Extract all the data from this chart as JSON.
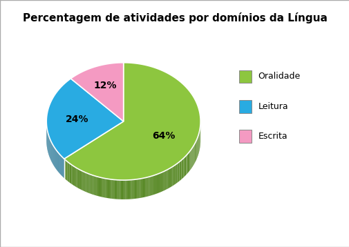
{
  "title": "Percentagem de atividades por domínios da Língua",
  "slices": [
    64,
    24,
    12
  ],
  "labels": [
    "Oralidade",
    "Leitura",
    "Escrita"
  ],
  "colors": [
    "#8DC63F",
    "#29ABE2",
    "#F49AC2"
  ],
  "dark_colors": [
    "#5A8A28",
    "#1A6E90",
    "#C06090"
  ],
  "pct_labels": [
    "64%",
    "24%",
    "12%"
  ],
  "legend_labels": [
    "Oralidade",
    "Leitura",
    "Escrita"
  ],
  "title_fontsize": 11,
  "pct_fontsize": 10,
  "legend_fontsize": 9,
  "background_color": "#ffffff"
}
